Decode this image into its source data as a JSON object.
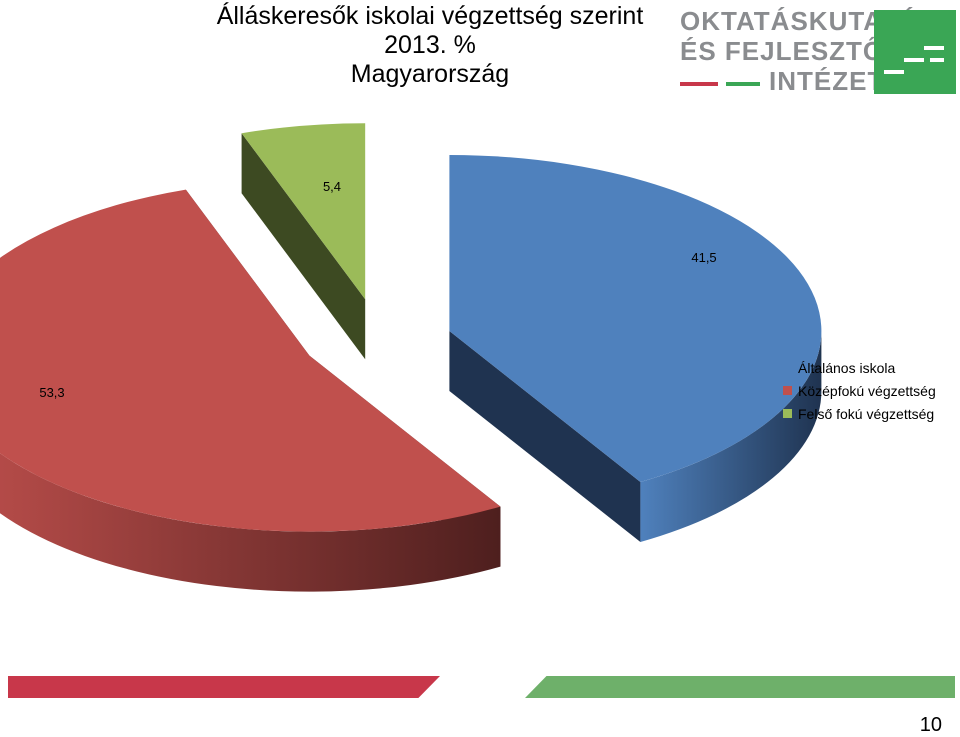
{
  "chart_data": {
    "type": "pie",
    "title": "Álláskeresők iskolai végzettség szerint",
    "subtitle": "2013. %",
    "region": "Magyarország",
    "categories": [
      "Általános iskola",
      "Középfokú végzettség",
      "Felső fokú végzettség"
    ],
    "values": [
      41.5,
      53.3,
      5.4
    ],
    "value_labels": [
      "41,5",
      "53,3",
      "5,4"
    ],
    "colors": [
      "#4f81bd",
      "#c0504d",
      "#9bbb59"
    ],
    "dark_colors": [
      "#1f3350",
      "#4e1f1e",
      "#3d4a22"
    ],
    "legend_position": "right"
  },
  "logo": {
    "line1": "OKTATÁSKUTATÓ",
    "line2": "ÉS FEJLESZTŐ",
    "line3": "INTÉZET",
    "accent_red": "#c8374a",
    "accent_green": "#3aa655"
  },
  "footer": {
    "page_number": "10"
  }
}
